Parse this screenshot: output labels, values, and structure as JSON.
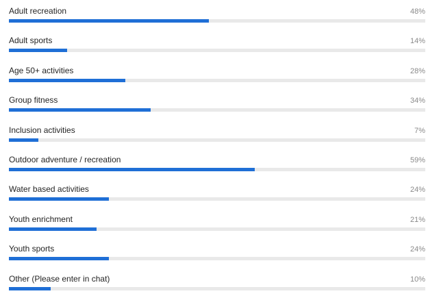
{
  "poll": {
    "accent_color": "#1f6fd6",
    "track_color": "#e9e9e9",
    "options": [
      {
        "label": "Adult recreation",
        "percent_text": "48%",
        "percent": 48
      },
      {
        "label": "Adult sports",
        "percent_text": "14%",
        "percent": 14
      },
      {
        "label": "Age 50+ activities",
        "percent_text": "28%",
        "percent": 28
      },
      {
        "label": "Group fitness",
        "percent_text": "34%",
        "percent": 34
      },
      {
        "label": "Inclusion activities",
        "percent_text": "7%",
        "percent": 7
      },
      {
        "label": "Outdoor adventure / recreation",
        "percent_text": "59%",
        "percent": 59
      },
      {
        "label": "Water based activities",
        "percent_text": "24%",
        "percent": 24
      },
      {
        "label": "Youth enrichment",
        "percent_text": "21%",
        "percent": 21
      },
      {
        "label": "Youth sports",
        "percent_text": "24%",
        "percent": 24
      },
      {
        "label": "Other (Please enter in chat)",
        "percent_text": "10%",
        "percent": 10
      }
    ]
  }
}
